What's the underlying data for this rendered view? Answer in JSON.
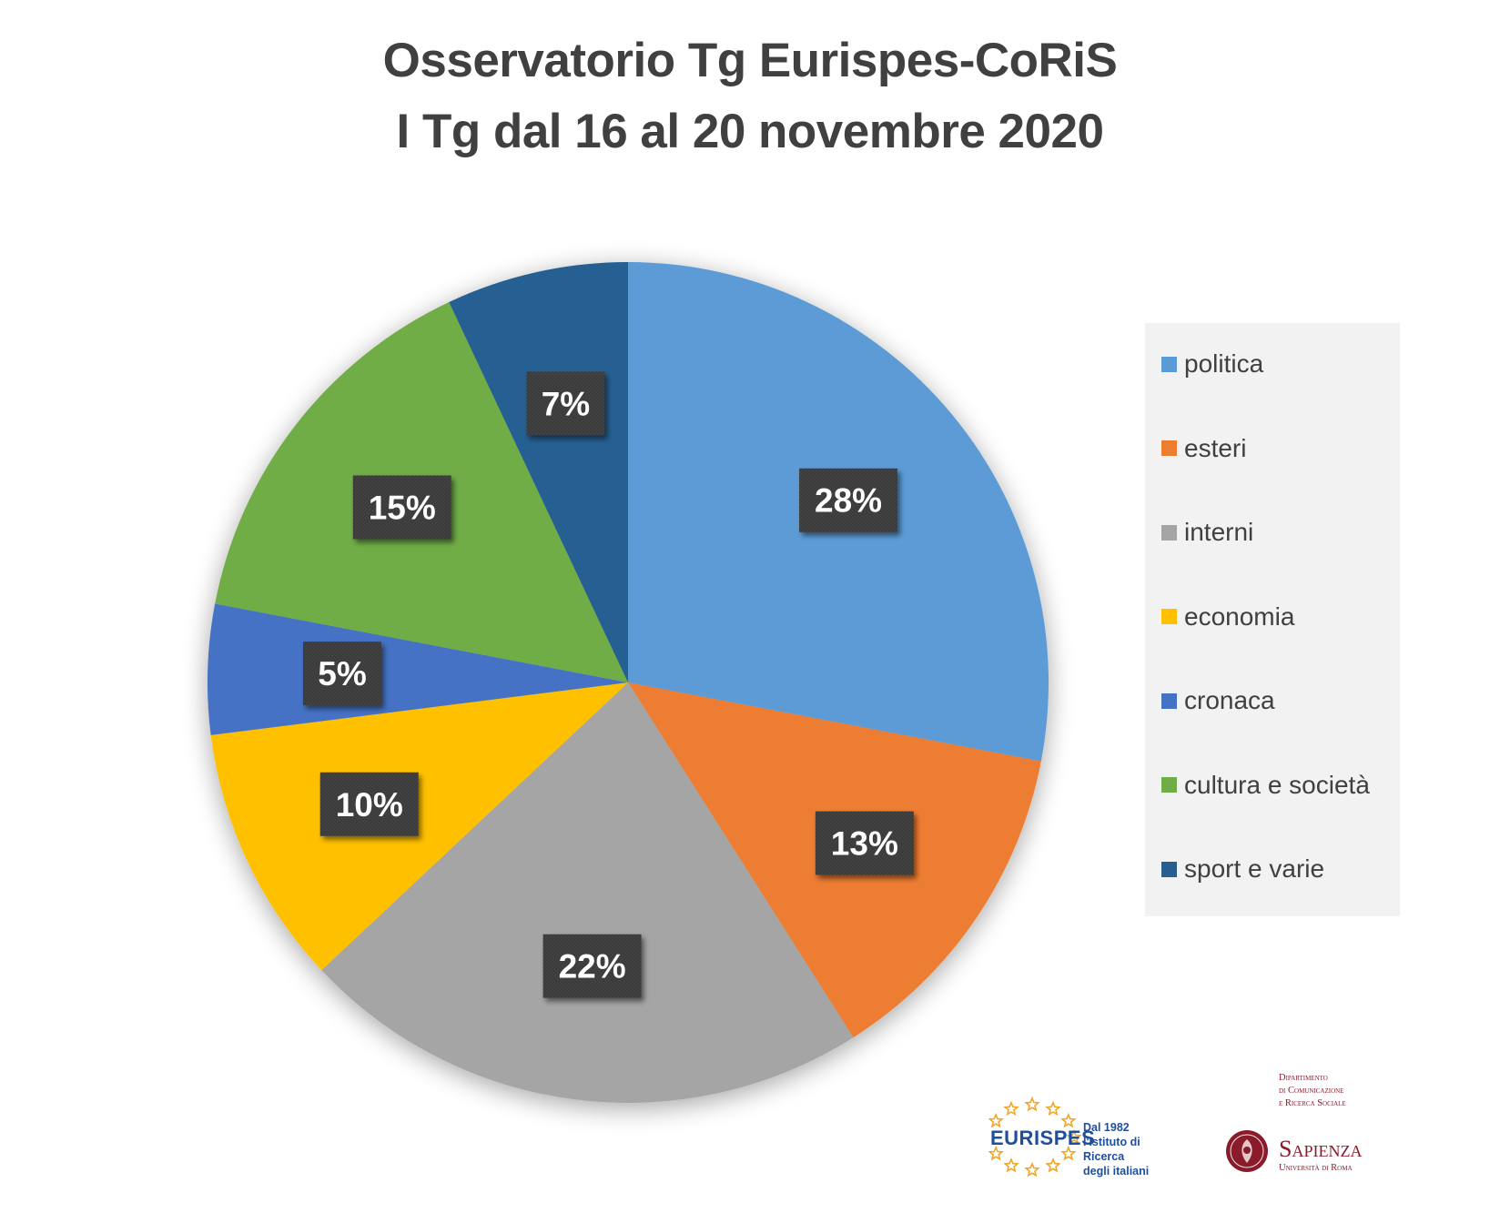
{
  "chart_data": {
    "type": "pie",
    "title": "Osservatorio Tg Eurispes-CoRiS",
    "subtitle": "I Tg dal 16 al 20 novembre 2020",
    "legend_position": "right",
    "slices": [
      {
        "label": "politica",
        "value": 28,
        "display": "28%",
        "color": "#5b9bd5"
      },
      {
        "label": "esteri",
        "value": 13,
        "display": "13%",
        "color": "#ed7d31"
      },
      {
        "label": "interni",
        "value": 22,
        "display": "22%",
        "color": "#a5a5a5"
      },
      {
        "label": "economia",
        "value": 10,
        "display": "10%",
        "color": "#ffc000"
      },
      {
        "label": "cronaca",
        "value": 5,
        "display": "5%",
        "color": "#4472c4"
      },
      {
        "label": "cultura e società",
        "value": 15,
        "display": "15%",
        "color": "#70ad47"
      },
      {
        "label": "sport e varie",
        "value": 7,
        "display": "7%",
        "color": "#255e91"
      }
    ]
  },
  "logos": {
    "eurispes": {
      "name": "EURISPES",
      "tagline": "Dal 1982\nl'Istituto di Ricerca\ndegli italiani"
    },
    "sapienza": {
      "department": "Dipartimento\ndi Comunicazione\ne Ricerca Sociale",
      "name": "Sapienza",
      "subtitle": "Università di Roma"
    }
  }
}
